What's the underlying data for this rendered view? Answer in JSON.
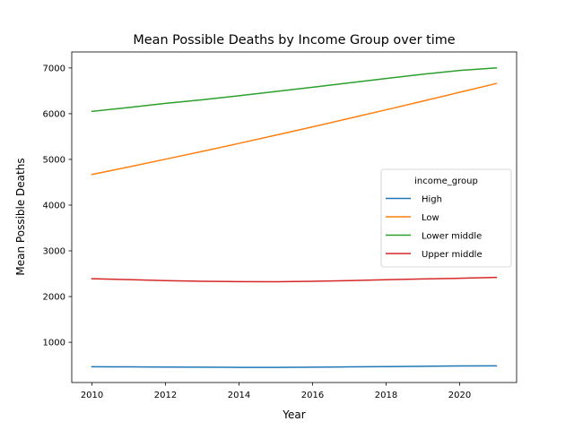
{
  "chart_data": {
    "type": "line",
    "title": "Mean Possible Deaths by Income Group over time",
    "xlabel": "Year",
    "ylabel": "Mean Possible Deaths",
    "x": [
      2010,
      2011,
      2012,
      2013,
      2014,
      2015,
      2016,
      2017,
      2018,
      2019,
      2020,
      2021
    ],
    "xlim": [
      2009.45,
      2021.55
    ],
    "ylim": [
      120,
      7350
    ],
    "xticks": [
      2010,
      2012,
      2014,
      2016,
      2018,
      2020
    ],
    "yticks": [
      1000,
      2000,
      3000,
      4000,
      5000,
      6000,
      7000
    ],
    "grid": false,
    "legend": {
      "title": "income_group",
      "placement": "center-right"
    },
    "series": [
      {
        "name": "High",
        "color": "#1f77b4",
        "values": [
          465,
          462,
          458,
          455,
          451,
          450,
          455,
          462,
          469,
          476,
          482,
          485
        ]
      },
      {
        "name": "Low",
        "color": "#ff7f0e",
        "values": [
          4670,
          4835,
          5005,
          5175,
          5350,
          5530,
          5712,
          5898,
          6085,
          6275,
          6468,
          6660
        ]
      },
      {
        "name": "Lower middle",
        "color": "#2ca02c",
        "values": [
          6050,
          6135,
          6225,
          6305,
          6392,
          6485,
          6578,
          6675,
          6770,
          6862,
          6945,
          7000
        ]
      },
      {
        "name": "Upper middle",
        "color": "#d62728",
        "values": [
          2390,
          2370,
          2350,
          2335,
          2326,
          2324,
          2334,
          2350,
          2368,
          2385,
          2400,
          2420
        ]
      }
    ]
  }
}
